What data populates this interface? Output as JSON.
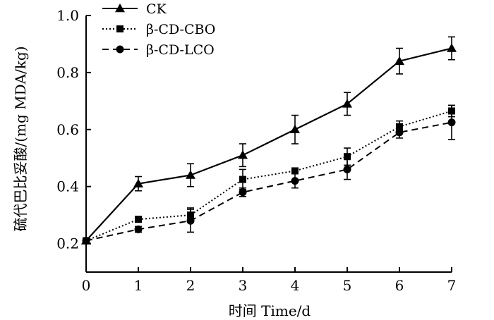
{
  "chart_data": {
    "type": "line",
    "title": "",
    "xlabel": "时间 Time/d",
    "ylabel": "硫代巴比妥酸/(mg MDA/kg)",
    "x": [
      0,
      1,
      2,
      3,
      4,
      5,
      6,
      7
    ],
    "xlim": [
      0,
      7
    ],
    "ylim": [
      0.1,
      1.0
    ],
    "x_ticks": [
      "0",
      "1",
      "2",
      "3",
      "4",
      "5",
      "6",
      "7"
    ],
    "y_ticks": [
      "0.2",
      "0.4",
      "0.6",
      "0.8",
      "1.0"
    ],
    "y_tick_values": [
      0.2,
      0.4,
      0.6,
      0.8,
      1.0
    ],
    "grid": false,
    "legend_position": "top-left",
    "series": [
      {
        "name": "CK",
        "marker": "triangle",
        "line_style": "solid",
        "values": [
          0.21,
          0.41,
          0.44,
          0.51,
          0.6,
          0.69,
          0.84,
          0.885
        ],
        "errors": [
          0.01,
          0.025,
          0.04,
          0.04,
          0.05,
          0.04,
          0.045,
          0.04
        ]
      },
      {
        "name": "β-CD-CBO",
        "marker": "square",
        "line_style": "dotted",
        "values": [
          0.21,
          0.285,
          0.3,
          0.425,
          0.455,
          0.505,
          0.61,
          0.665
        ],
        "errors": [
          0.01,
          0.01,
          0.025,
          0.035,
          0.01,
          0.03,
          0.02,
          0.02
        ]
      },
      {
        "name": "β-CD-LCO",
        "marker": "circle",
        "line_style": "dashed",
        "values": [
          0.21,
          0.25,
          0.28,
          0.38,
          0.42,
          0.46,
          0.59,
          0.625
        ],
        "errors": [
          0.01,
          0.01,
          0.04,
          0.015,
          0.025,
          0.035,
          0.02,
          0.06
        ]
      }
    ]
  }
}
